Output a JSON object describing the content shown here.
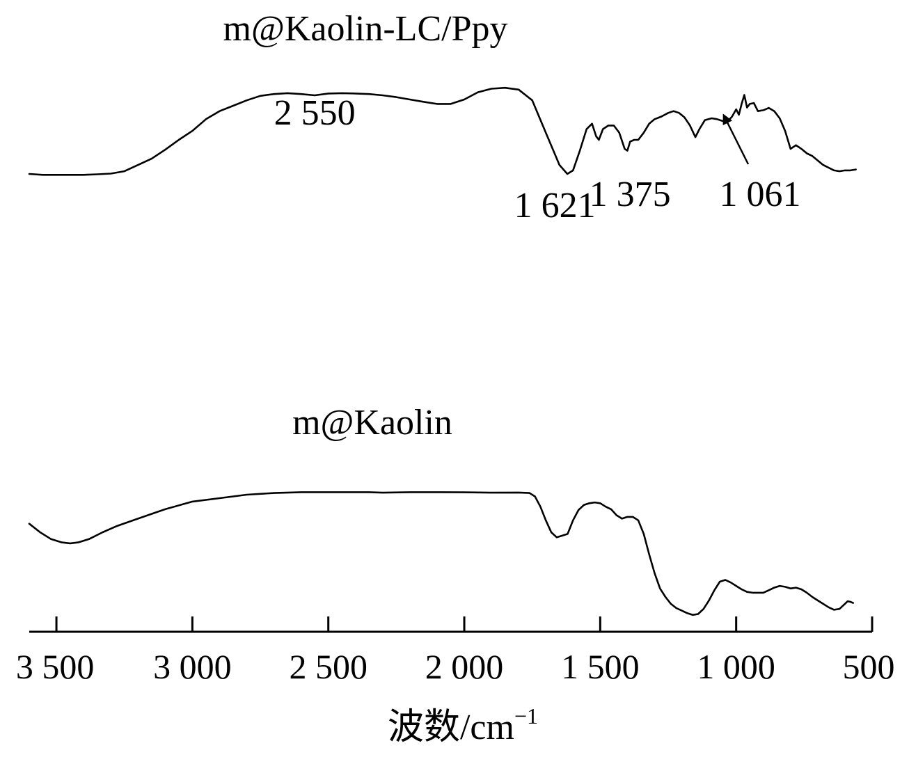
{
  "chart_data": {
    "type": "line",
    "x_axis": {
      "label": "波数/cm",
      "label_superscript": "−1",
      "xlim": [
        3600,
        500
      ],
      "reversed": true,
      "ticks": [
        3500,
        3000,
        2500,
        2000,
        1500,
        1000,
        500
      ],
      "tick_labels": [
        "3 500",
        "3 000",
        "2 500",
        "2 000",
        "1 500",
        "1 000",
        "500"
      ]
    },
    "y_axis": {
      "visible": false,
      "ylim": [
        0,
        1
      ]
    },
    "grid": false,
    "series": [
      {
        "name": "m@Kaolin-LC/Ppy",
        "color": "#000000",
        "points": [
          [
            3600,
            0.31
          ],
          [
            3550,
            0.305
          ],
          [
            3500,
            0.305
          ],
          [
            3450,
            0.305
          ],
          [
            3400,
            0.305
          ],
          [
            3350,
            0.308
          ],
          [
            3300,
            0.312
          ],
          [
            3250,
            0.325
          ],
          [
            3200,
            0.36
          ],
          [
            3150,
            0.395
          ],
          [
            3100,
            0.445
          ],
          [
            3050,
            0.5
          ],
          [
            3000,
            0.55
          ],
          [
            2950,
            0.615
          ],
          [
            2900,
            0.66
          ],
          [
            2850,
            0.69
          ],
          [
            2800,
            0.72
          ],
          [
            2750,
            0.745
          ],
          [
            2700,
            0.755
          ],
          [
            2650,
            0.76
          ],
          [
            2600,
            0.755
          ],
          [
            2550,
            0.748
          ],
          [
            2500,
            0.758
          ],
          [
            2450,
            0.76
          ],
          [
            2400,
            0.758
          ],
          [
            2350,
            0.755
          ],
          [
            2300,
            0.748
          ],
          [
            2250,
            0.738
          ],
          [
            2200,
            0.725
          ],
          [
            2150,
            0.712
          ],
          [
            2100,
            0.7
          ],
          [
            2050,
            0.7
          ],
          [
            2000,
            0.725
          ],
          [
            1950,
            0.765
          ],
          [
            1900,
            0.785
          ],
          [
            1850,
            0.79
          ],
          [
            1800,
            0.78
          ],
          [
            1750,
            0.72
          ],
          [
            1700,
            0.54
          ],
          [
            1650,
            0.36
          ],
          [
            1621,
            0.31
          ],
          [
            1600,
            0.33
          ],
          [
            1575,
            0.44
          ],
          [
            1550,
            0.56
          ],
          [
            1530,
            0.59
          ],
          [
            1515,
            0.52
          ],
          [
            1505,
            0.5
          ],
          [
            1490,
            0.56
          ],
          [
            1470,
            0.58
          ],
          [
            1450,
            0.58
          ],
          [
            1430,
            0.54
          ],
          [
            1410,
            0.45
          ],
          [
            1400,
            0.44
          ],
          [
            1390,
            0.49
          ],
          [
            1375,
            0.5
          ],
          [
            1360,
            0.5
          ],
          [
            1340,
            0.54
          ],
          [
            1320,
            0.59
          ],
          [
            1300,
            0.615
          ],
          [
            1275,
            0.63
          ],
          [
            1250,
            0.65
          ],
          [
            1230,
            0.66
          ],
          [
            1210,
            0.65
          ],
          [
            1190,
            0.625
          ],
          [
            1170,
            0.58
          ],
          [
            1150,
            0.515
          ],
          [
            1135,
            0.56
          ],
          [
            1115,
            0.61
          ],
          [
            1090,
            0.62
          ],
          [
            1070,
            0.615
          ],
          [
            1050,
            0.605
          ],
          [
            1030,
            0.605
          ],
          [
            1015,
            0.63
          ],
          [
            1000,
            0.67
          ],
          [
            990,
            0.64
          ],
          [
            980,
            0.7
          ],
          [
            970,
            0.75
          ],
          [
            960,
            0.68
          ],
          [
            950,
            0.7
          ],
          [
            935,
            0.705
          ],
          [
            920,
            0.66
          ],
          [
            900,
            0.665
          ],
          [
            880,
            0.678
          ],
          [
            860,
            0.66
          ],
          [
            840,
            0.62
          ],
          [
            820,
            0.55
          ],
          [
            800,
            0.45
          ],
          [
            780,
            0.47
          ],
          [
            760,
            0.45
          ],
          [
            740,
            0.425
          ],
          [
            720,
            0.41
          ],
          [
            700,
            0.385
          ],
          [
            680,
            0.36
          ],
          [
            660,
            0.345
          ],
          [
            640,
            0.33
          ],
          [
            620,
            0.325
          ],
          [
            600,
            0.33
          ],
          [
            580,
            0.33
          ],
          [
            560,
            0.335
          ]
        ]
      },
      {
        "name": "m@Kaolin",
        "color": "#000000",
        "points": [
          [
            3600,
            0.54
          ],
          [
            3560,
            0.49
          ],
          [
            3520,
            0.45
          ],
          [
            3480,
            0.43
          ],
          [
            3450,
            0.425
          ],
          [
            3420,
            0.43
          ],
          [
            3380,
            0.45
          ],
          [
            3330,
            0.49
          ],
          [
            3280,
            0.525
          ],
          [
            3200,
            0.57
          ],
          [
            3100,
            0.625
          ],
          [
            3000,
            0.67
          ],
          [
            2900,
            0.69
          ],
          [
            2800,
            0.71
          ],
          [
            2700,
            0.72
          ],
          [
            2600,
            0.725
          ],
          [
            2500,
            0.725
          ],
          [
            2400,
            0.725
          ],
          [
            2350,
            0.725
          ],
          [
            2300,
            0.722
          ],
          [
            2200,
            0.725
          ],
          [
            2100,
            0.725
          ],
          [
            2000,
            0.724
          ],
          [
            1900,
            0.722
          ],
          [
            1800,
            0.723
          ],
          [
            1760,
            0.72
          ],
          [
            1740,
            0.7
          ],
          [
            1720,
            0.64
          ],
          [
            1700,
            0.56
          ],
          [
            1680,
            0.49
          ],
          [
            1660,
            0.46
          ],
          [
            1640,
            0.47
          ],
          [
            1620,
            0.48
          ],
          [
            1600,
            0.56
          ],
          [
            1580,
            0.62
          ],
          [
            1560,
            0.65
          ],
          [
            1540,
            0.66
          ],
          [
            1520,
            0.665
          ],
          [
            1500,
            0.66
          ],
          [
            1480,
            0.64
          ],
          [
            1460,
            0.625
          ],
          [
            1440,
            0.59
          ],
          [
            1420,
            0.57
          ],
          [
            1400,
            0.58
          ],
          [
            1380,
            0.58
          ],
          [
            1360,
            0.56
          ],
          [
            1340,
            0.48
          ],
          [
            1320,
            0.36
          ],
          [
            1300,
            0.25
          ],
          [
            1280,
            0.16
          ],
          [
            1260,
            0.11
          ],
          [
            1240,
            0.07
          ],
          [
            1220,
            0.045
          ],
          [
            1200,
            0.03
          ],
          [
            1180,
            0.015
          ],
          [
            1160,
            0.005
          ],
          [
            1140,
            0.01
          ],
          [
            1120,
            0.04
          ],
          [
            1100,
            0.09
          ],
          [
            1080,
            0.15
          ],
          [
            1060,
            0.2
          ],
          [
            1040,
            0.21
          ],
          [
            1020,
            0.195
          ],
          [
            1000,
            0.175
          ],
          [
            980,
            0.155
          ],
          [
            960,
            0.14
          ],
          [
            940,
            0.135
          ],
          [
            920,
            0.135
          ],
          [
            900,
            0.135
          ],
          [
            880,
            0.15
          ],
          [
            860,
            0.165
          ],
          [
            840,
            0.175
          ],
          [
            820,
            0.17
          ],
          [
            800,
            0.16
          ],
          [
            780,
            0.165
          ],
          [
            760,
            0.155
          ],
          [
            740,
            0.135
          ],
          [
            720,
            0.11
          ],
          [
            700,
            0.09
          ],
          [
            680,
            0.07
          ],
          [
            660,
            0.05
          ],
          [
            640,
            0.035
          ],
          [
            620,
            0.04
          ],
          [
            600,
            0.07
          ],
          [
            590,
            0.085
          ],
          [
            580,
            0.082
          ],
          [
            570,
            0.075
          ]
        ]
      }
    ],
    "annotations": [
      {
        "text": "2 550",
        "x": 2550,
        "series": "m@Kaolin-LC/Ppy"
      },
      {
        "text": "1 621",
        "x": 1621,
        "series": "m@Kaolin-LC/Ppy"
      },
      {
        "text": "1 375",
        "x": 1375,
        "series": "m@Kaolin-LC/Ppy"
      },
      {
        "text": "1 061",
        "x": 1061,
        "series": "m@Kaolin-LC/Ppy",
        "arrow": true
      }
    ]
  }
}
